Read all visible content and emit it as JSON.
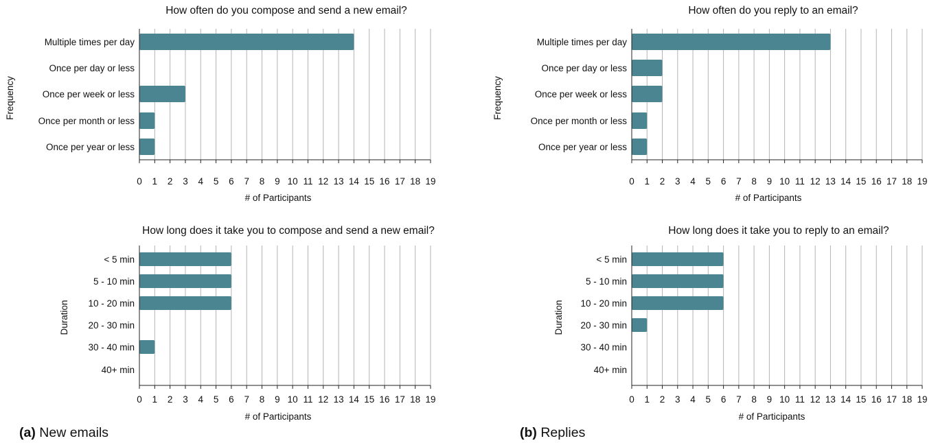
{
  "captions": [
    {
      "letter": "(a)",
      "text": "New emails"
    },
    {
      "letter": "(b)",
      "text": "Replies"
    }
  ],
  "bar_color": "#4b8591",
  "chart_data": [
    {
      "type": "bar",
      "orientation": "horizontal",
      "title": "How often do you compose and send a new email?",
      "xlabel": "# of Participants",
      "ylabel": "Frequency",
      "categories": [
        "Multiple times per day",
        "Once per day or less",
        "Once per week or less",
        "Once per month or less",
        "Once per year or less"
      ],
      "values": [
        14,
        0,
        3,
        1,
        1
      ],
      "xlim": [
        0,
        19
      ],
      "xticks": [
        0,
        1,
        2,
        3,
        4,
        5,
        6,
        7,
        8,
        9,
        10,
        11,
        12,
        13,
        14,
        15,
        16,
        17,
        18,
        19
      ],
      "grid": "vertical"
    },
    {
      "type": "bar",
      "orientation": "horizontal",
      "title": "How often do you reply to an email?",
      "xlabel": "# of Participants",
      "ylabel": "Frequency",
      "categories": [
        "Multiple times per day",
        "Once per day or less",
        "Once per week or less",
        "Once per month or less",
        "Once per year or less"
      ],
      "values": [
        13,
        2,
        2,
        1,
        1
      ],
      "xlim": [
        0,
        19
      ],
      "xticks": [
        0,
        1,
        2,
        3,
        4,
        5,
        6,
        7,
        8,
        9,
        10,
        11,
        12,
        13,
        14,
        15,
        16,
        17,
        18,
        19
      ],
      "grid": "vertical"
    },
    {
      "type": "bar",
      "orientation": "horizontal",
      "title": "How long does it take you to compose and send a new email?",
      "xlabel": "# of Participants",
      "ylabel": "Duration",
      "categories": [
        "< 5 min",
        "5 - 10 min",
        "10 - 20 min",
        "20 - 30 min",
        "30 - 40 min",
        "40+ min"
      ],
      "values": [
        6,
        6,
        6,
        0,
        1,
        0
      ],
      "xlim": [
        0,
        19
      ],
      "xticks": [
        0,
        1,
        2,
        3,
        4,
        5,
        6,
        7,
        8,
        9,
        10,
        11,
        12,
        13,
        14,
        15,
        16,
        17,
        18,
        19
      ],
      "grid": "vertical"
    },
    {
      "type": "bar",
      "orientation": "horizontal",
      "title": "How long does it take you to reply to an email?",
      "xlabel": "# of Participants",
      "ylabel": "Duration",
      "categories": [
        "< 5 min",
        "5 - 10 min",
        "10 - 20 min",
        "20 - 30 min",
        "30 - 40 min",
        "40+ min"
      ],
      "values": [
        6,
        6,
        6,
        1,
        0,
        0
      ],
      "xlim": [
        0,
        19
      ],
      "xticks": [
        0,
        1,
        2,
        3,
        4,
        5,
        6,
        7,
        8,
        9,
        10,
        11,
        12,
        13,
        14,
        15,
        16,
        17,
        18,
        19
      ],
      "grid": "vertical"
    }
  ]
}
